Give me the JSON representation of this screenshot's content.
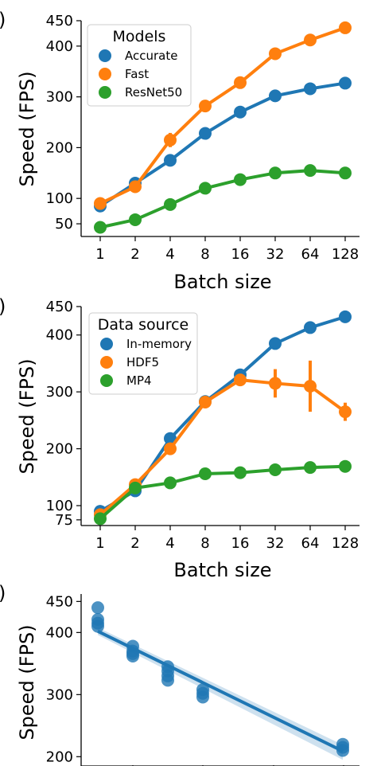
{
  "chart_data": [
    {
      "type": "line",
      "categories": [
        "1",
        "2",
        "4",
        "8",
        "16",
        "32",
        "64",
        "128"
      ],
      "xlabel": "Batch size",
      "ylabel": "Speed (FPS)",
      "ylim": [
        25,
        450
      ],
      "yticks": [
        50,
        100,
        200,
        300,
        400,
        450
      ],
      "legend_title": "Models",
      "legend_position": "top-left",
      "grid": false,
      "series": [
        {
          "name": "Accurate",
          "color": "#1f77b4",
          "values": [
            85,
            130,
            175,
            228,
            270,
            302,
            316,
            327
          ],
          "err": [
            5,
            10,
            6,
            3,
            3,
            3,
            3,
            3
          ]
        },
        {
          "name": "Fast",
          "color": "#ff7f0e",
          "values": [
            90,
            123,
            215,
            282,
            328,
            385,
            412,
            436
          ],
          "err": [
            4,
            5,
            14,
            4,
            3,
            3,
            3,
            3
          ]
        },
        {
          "name": "ResNet50",
          "color": "#2ca02c",
          "values": [
            43,
            58,
            88,
            120,
            137,
            150,
            155,
            150
          ],
          "err": [
            2,
            2,
            2,
            2,
            2,
            2,
            2,
            2
          ]
        }
      ]
    },
    {
      "type": "line",
      "categories": [
        "1",
        "2",
        "4",
        "8",
        "16",
        "32",
        "64",
        "128"
      ],
      "xlabel": "Batch size",
      "ylabel": "Speed (FPS)",
      "ylim": [
        65,
        450
      ],
      "yticks": [
        75,
        100,
        200,
        300,
        400,
        450
      ],
      "legend_title": "Data source",
      "legend_position": "top-left",
      "grid": false,
      "series": [
        {
          "name": "In-memory",
          "color": "#1f77b4",
          "values": [
            90,
            126,
            218,
            283,
            330,
            385,
            413,
            432
          ],
          "err": [
            4,
            5,
            10,
            4,
            3,
            3,
            3,
            3
          ]
        },
        {
          "name": "HDF5",
          "color": "#ff7f0e",
          "values": [
            84,
            137,
            200,
            282,
            321,
            315,
            310,
            265
          ],
          "err": [
            3,
            4,
            8,
            4,
            6,
            25,
            45,
            16
          ]
        },
        {
          "name": "MP4",
          "color": "#2ca02c",
          "values": [
            77,
            131,
            140,
            156,
            158,
            163,
            167,
            169
          ],
          "err": [
            2,
            2,
            2,
            2,
            2,
            2,
            2,
            2
          ]
        }
      ]
    },
    {
      "type": "scatter",
      "ylabel": "Speed (FPS)",
      "xlim": [
        0,
        8.3
      ],
      "ylim": [
        185,
        462
      ],
      "yticks": [
        200,
        300,
        400,
        450
      ],
      "grid": false,
      "points": [
        {
          "x": 0,
          "y": 440
        },
        {
          "x": 0,
          "y": 421
        },
        {
          "x": 0,
          "y": 415
        },
        {
          "x": 0,
          "y": 410
        },
        {
          "x": 1,
          "y": 378
        },
        {
          "x": 1,
          "y": 370
        },
        {
          "x": 1,
          "y": 366
        },
        {
          "x": 1,
          "y": 362
        },
        {
          "x": 2,
          "y": 345
        },
        {
          "x": 2,
          "y": 338
        },
        {
          "x": 2,
          "y": 330
        },
        {
          "x": 2,
          "y": 323
        },
        {
          "x": 3,
          "y": 308
        },
        {
          "x": 3,
          "y": 302
        },
        {
          "x": 3,
          "y": 296
        },
        {
          "x": 7,
          "y": 220
        },
        {
          "x": 7,
          "y": 215
        },
        {
          "x": 7,
          "y": 210
        }
      ],
      "fit": {
        "x": [
          0,
          7
        ],
        "y": [
          402,
          209
        ]
      },
      "color": "#1f77b4"
    }
  ]
}
